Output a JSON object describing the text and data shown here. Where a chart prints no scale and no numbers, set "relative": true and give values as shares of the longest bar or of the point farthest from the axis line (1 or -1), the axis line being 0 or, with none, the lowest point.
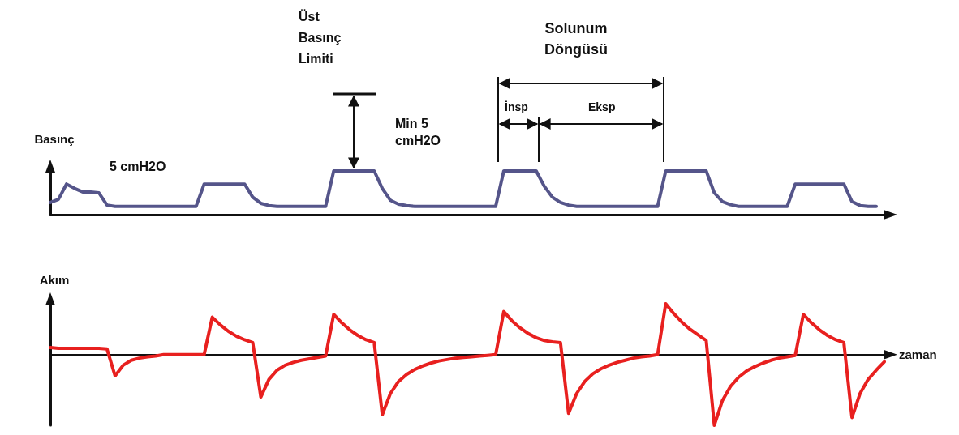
{
  "chart_data": [
    {
      "type": "line",
      "relative": true,
      "ylabel": "Basınç",
      "line_style": "solid",
      "marker": "none",
      "grid": false,
      "annotations": [
        "5 cmH2O",
        "Üst Basınç Limiti",
        "Min 5 cmH2O",
        "Solunum Döngüsü",
        "İnsp",
        "Eksp"
      ],
      "categories": [
        null,
        null,
        null,
        null,
        null,
        null,
        null,
        null,
        null,
        null,
        null,
        null,
        null,
        null,
        null,
        null,
        null,
        null,
        null,
        null,
        null,
        null,
        null,
        null,
        null,
        null,
        null,
        null,
        null,
        null,
        null,
        null,
        null,
        null,
        null,
        null,
        null,
        null,
        null,
        null,
        null,
        null,
        null,
        null,
        null,
        null,
        null,
        null,
        null,
        null,
        null,
        null,
        null,
        null,
        null,
        null,
        null,
        null,
        null,
        null,
        null,
        null,
        null,
        null,
        null,
        null,
        null,
        null,
        null,
        null,
        null,
        null,
        null,
        null,
        null,
        null,
        null,
        null,
        null,
        null,
        null,
        null,
        null,
        null,
        null,
        null,
        null,
        null,
        null,
        null,
        null,
        null,
        null,
        null,
        null,
        null,
        null,
        null,
        null,
        null,
        null,
        null,
        null,
        null
      ],
      "series": [
        {
          "color": "#55558a",
          "values": [
            0.28,
            0.35,
            0.7,
            0.6,
            0.52,
            0.52,
            0.5,
            0.22,
            0.19,
            0.19,
            0.19,
            0.19,
            0.19,
            0.19,
            0.19,
            0.19,
            0.19,
            0.19,
            0.19,
            0.7,
            0.7,
            0.7,
            0.7,
            0.7,
            0.7,
            0.4,
            0.26,
            0.21,
            0.19,
            0.19,
            0.19,
            0.19,
            0.19,
            0.19,
            0.19,
            1,
            1,
            1,
            1,
            1,
            1,
            0.6,
            0.33,
            0.24,
            0.21,
            0.19,
            0.19,
            0.19,
            0.19,
            0.19,
            0.19,
            0.19,
            0.19,
            0.19,
            0.19,
            0.19,
            1,
            1,
            1,
            1,
            1,
            0.65,
            0.4,
            0.28,
            0.22,
            0.19,
            0.19,
            0.19,
            0.19,
            0.19,
            0.19,
            0.19,
            0.19,
            0.19,
            0.19,
            0.19,
            1,
            1,
            1,
            1,
            1,
            1,
            0.5,
            0.3,
            0.23,
            0.19,
            0.19,
            0.19,
            0.19,
            0.19,
            0.19,
            0.19,
            0.7,
            0.7,
            0.7,
            0.7,
            0.7,
            0.7,
            0.7,
            0.3,
            0.21,
            0.19,
            0.19,
            null
          ]
        }
      ]
    },
    {
      "type": "line",
      "relative": true,
      "ylabel": "Akım",
      "xlabel": "zaman",
      "line_style": "solid",
      "marker": "none",
      "grid": false,
      "categories": [
        null,
        null,
        null,
        null,
        null,
        null,
        null,
        null,
        null,
        null,
        null,
        null,
        null,
        null,
        null,
        null,
        null,
        null,
        null,
        null,
        null,
        null,
        null,
        null,
        null,
        null,
        null,
        null,
        null,
        null,
        null,
        null,
        null,
        null,
        null,
        null,
        null,
        null,
        null,
        null,
        null,
        null,
        null,
        null,
        null,
        null,
        null,
        null,
        null,
        null,
        null,
        null,
        null,
        null,
        null,
        null,
        null,
        null,
        null,
        null,
        null,
        null,
        null,
        null,
        null,
        null,
        null,
        null,
        null,
        null,
        null,
        null,
        null,
        null,
        null,
        null,
        null,
        null,
        null,
        null,
        null,
        null,
        null,
        null,
        null,
        null,
        null,
        null,
        null,
        null,
        null,
        null,
        null,
        null,
        null,
        null,
        null,
        null,
        null,
        null,
        null,
        null,
        null,
        null
      ],
      "series": [
        {
          "color": "#e8201f",
          "values": [
            0.1,
            0.09,
            0.09,
            0.09,
            0.09,
            0.09,
            0.09,
            0.08,
            -0.3,
            -0.15,
            -0.08,
            -0.05,
            -0.03,
            -0.02,
            0,
            0,
            0,
            0,
            0,
            0,
            0.53,
            0.42,
            0.33,
            0.26,
            0.21,
            0.17,
            -0.6,
            -0.35,
            -0.22,
            -0.15,
            -0.11,
            -0.08,
            -0.06,
            -0.04,
            -0.02,
            0.57,
            0.45,
            0.35,
            0.27,
            0.21,
            0.17,
            -0.85,
            -0.55,
            -0.38,
            -0.28,
            -0.21,
            -0.16,
            -0.12,
            -0.09,
            -0.07,
            -0.05,
            -0.04,
            -0.03,
            -0.02,
            -0.01,
            0,
            0.61,
            0.48,
            0.38,
            0.3,
            0.24,
            0.2,
            0.18,
            0.17,
            -0.83,
            -0.55,
            -0.38,
            -0.27,
            -0.2,
            -0.15,
            -0.11,
            -0.08,
            -0.05,
            -0.03,
            -0.02,
            0,
            0.72,
            0.58,
            0.46,
            0.36,
            0.28,
            0.2,
            -1,
            -0.65,
            -0.45,
            -0.32,
            -0.23,
            -0.17,
            -0.12,
            -0.08,
            -0.05,
            -0.03,
            -0.01,
            0.57,
            0.45,
            0.35,
            0.27,
            0.21,
            0.17,
            -0.89,
            -0.55,
            -0.35,
            -0.22,
            -0.1
          ]
        }
      ]
    }
  ]
}
